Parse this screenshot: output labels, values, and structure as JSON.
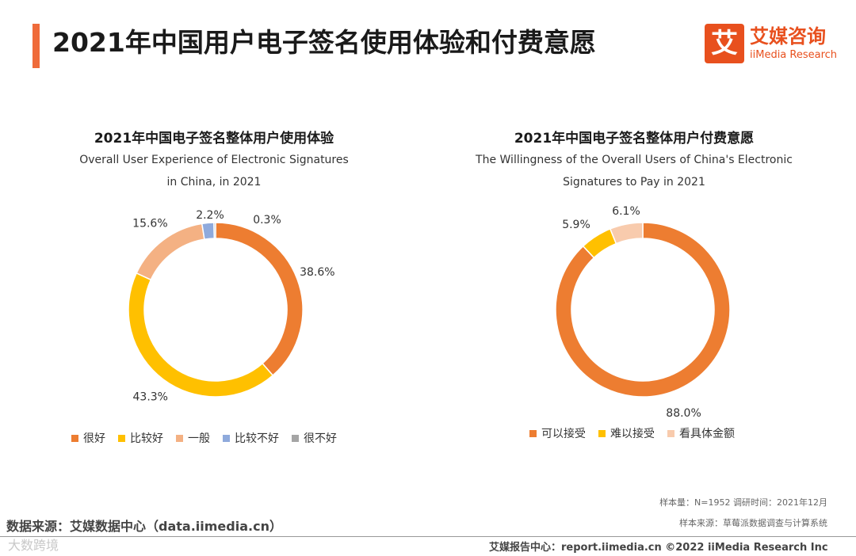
{
  "header": {
    "title": "2021年中国用户电子签名使用体验和付费意愿",
    "logo_mark": "艾",
    "logo_cn": "艾媒咨询",
    "logo_en": "iiMedia Research",
    "accent": "#ef6b3a"
  },
  "chart_data": [
    {
      "type": "pie",
      "donut": true,
      "title": "2021年中国电子签名整体用户使用体验",
      "subtitle_line1": "Overall User Experience of Electronic Signatures",
      "subtitle_line2": "in China, in 2021",
      "categories": [
        "很好",
        "比较好",
        "一般",
        "比较不好",
        "很不好"
      ],
      "values": [
        38.6,
        43.3,
        15.6,
        2.2,
        0.3
      ],
      "labels": [
        "38.6%",
        "43.3%",
        "15.6%",
        "2.2%",
        "0.3%"
      ],
      "colors": [
        "#ed7d31",
        "#ffc000",
        "#f4b183",
        "#8faadc",
        "#a5a5a5"
      ],
      "legend_position": "bottom"
    },
    {
      "type": "pie",
      "donut": true,
      "title": "2021年中国电子签名整体用户付费意愿",
      "subtitle_line1": "The Willingness of the Overall Users of China's Electronic",
      "subtitle_line2": "Signatures to Pay in 2021",
      "categories": [
        "可以接受",
        "难以接受",
        "看具体金额"
      ],
      "values": [
        88.0,
        5.9,
        6.1
      ],
      "labels": [
        "88.0%",
        "5.9%",
        "6.1%"
      ],
      "colors": [
        "#ed7d31",
        "#ffc000",
        "#f8cbad"
      ],
      "legend_position": "bottom"
    }
  ],
  "meta": {
    "sample": "样本量：N=1952   调研时间：2021年12月",
    "sample_source": "样本来源：草莓派数据调查与计算系统"
  },
  "footer": {
    "source": "数据来源：艾媒数据中心（data.iimedia.cn）",
    "watermark": "大数跨境",
    "right_text": "艾媒报告中心：report.iimedia.cn   ©2022  iiMedia Research  Inc"
  }
}
